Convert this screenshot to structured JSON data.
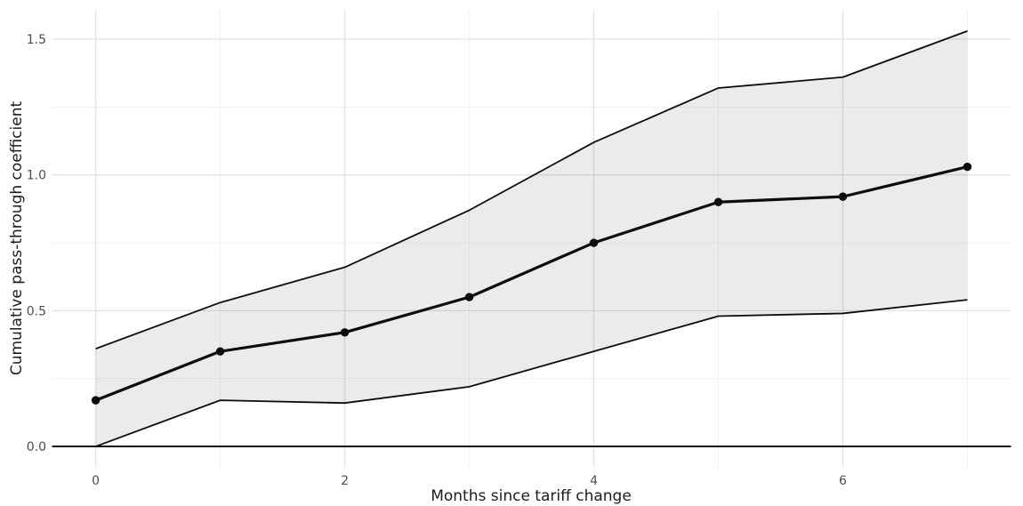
{
  "chart_data": {
    "type": "line",
    "title": "",
    "xlabel": "Months since tariff change",
    "ylabel": "Cumulative pass-through coefficient",
    "x": [
      0,
      1,
      2,
      3,
      4,
      5,
      6,
      7
    ],
    "series": [
      {
        "name": "coefficient",
        "values": [
          0.17,
          0.35,
          0.42,
          0.55,
          0.75,
          0.9,
          0.92,
          1.03
        ]
      },
      {
        "name": "ci_lower",
        "values": [
          0.0,
          0.17,
          0.16,
          0.22,
          0.35,
          0.48,
          0.49,
          0.54
        ]
      },
      {
        "name": "ci_upper",
        "values": [
          0.36,
          0.53,
          0.66,
          0.87,
          1.12,
          1.32,
          1.36,
          1.53
        ]
      }
    ],
    "x_ticks": [
      0,
      2,
      4,
      6
    ],
    "x_tick_labels": [
      "0",
      "2",
      "4",
      "6"
    ],
    "x_minor_ticks": [
      1,
      3,
      5,
      7
    ],
    "y_ticks": [
      0.0,
      0.5,
      1.0,
      1.5
    ],
    "y_tick_labels": [
      "0.0",
      "0.5",
      "1.0",
      "1.5"
    ],
    "y_minor_ticks": [
      0.25,
      0.75,
      1.25
    ],
    "xlim": [
      -0.35,
      7.35
    ],
    "ylim": [
      -0.0765,
      1.6065
    ],
    "hline": 0,
    "grid": true,
    "legend": "none",
    "colors": {
      "background": "#ffffff",
      "ribbon_fill": "#ebebeb",
      "grid_major": "#e2e2e2",
      "grid_minor": "#f0f0f0",
      "line": "#0d0d0d",
      "point": "#0d0d0d",
      "zero_line": "#111111",
      "tick_text": "#4d4d4d",
      "title_text": "#1c1c1c"
    }
  }
}
